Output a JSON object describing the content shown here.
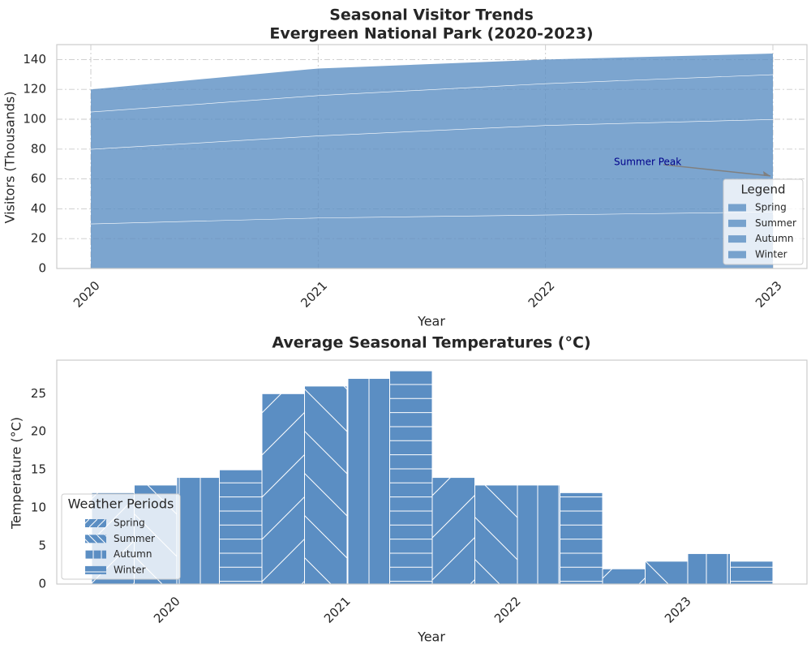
{
  "colors": {
    "fill": "#5b8ec3",
    "grid": "#c9c9c9",
    "series_line": "#ffffff",
    "frame": "#cccccc",
    "annotation_text": "#00008b",
    "annotation_arrow": "#808080",
    "text": "#262626"
  },
  "chart_data": [
    {
      "type": "area",
      "stacked": true,
      "title": "Seasonal Visitor Trends\nEvergreen National Park (2020-2023)",
      "xlabel": "Year",
      "ylabel": "Visitors (Thousands)",
      "x": [
        "2020",
        "2021",
        "2022",
        "2023"
      ],
      "ylim": [
        0,
        150
      ],
      "yticks": [
        0,
        20,
        40,
        60,
        80,
        100,
        120,
        140
      ],
      "grid": true,
      "legend_title": "Legend",
      "legend_position": "lower-right",
      "series": [
        {
          "name": "Spring",
          "values": [
            30,
            34,
            36,
            38
          ]
        },
        {
          "name": "Summer",
          "values": [
            50,
            55,
            60,
            62
          ]
        },
        {
          "name": "Autumn",
          "values": [
            25,
            27,
            28,
            30
          ]
        },
        {
          "name": "Winter",
          "values": [
            15,
            18,
            16,
            14
          ]
        }
      ],
      "annotation": {
        "text": "Summer Peak",
        "x": "2023",
        "y": 62
      }
    },
    {
      "type": "bar",
      "title": "Average Seasonal Temperatures (°C)",
      "xlabel": "Year",
      "ylabel": "Temperature (°C)",
      "categories": [
        "2020",
        "2021",
        "2022",
        "2023"
      ],
      "ylim": [
        0,
        29.4
      ],
      "yticks": [
        0,
        5,
        10,
        15,
        20,
        25
      ],
      "grid": false,
      "legend_title": "Weather Periods",
      "legend_position": "lower-left",
      "series": [
        {
          "name": "Spring",
          "hatch": "/",
          "values": [
            12,
            25,
            14,
            2
          ]
        },
        {
          "name": "Summer",
          "hatch": "\\",
          "values": [
            13,
            26,
            13,
            3
          ]
        },
        {
          "name": "Autumn",
          "hatch": "|",
          "values": [
            14,
            27,
            13,
            4
          ]
        },
        {
          "name": "Winter",
          "hatch": "-",
          "values": [
            15,
            28,
            12,
            3
          ]
        }
      ]
    }
  ]
}
